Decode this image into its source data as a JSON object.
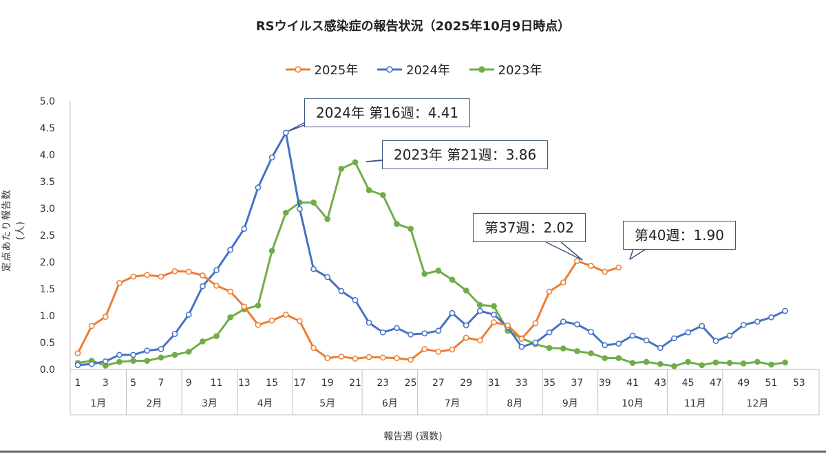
{
  "chart_data": {
    "type": "line",
    "title": "RSウイルス感染症の報告状況（2025年10月9日時点）",
    "xlabel": "報告週 (週数)",
    "ylabel": "定点あたり報告数 (人)",
    "ylim": [
      0,
      5
    ],
    "yticks": [
      "0.0",
      "0.5",
      "1.0",
      "1.5",
      "2.0",
      "2.5",
      "3.0",
      "3.5",
      "4.0",
      "4.5",
      "5.0"
    ],
    "xlim": [
      1,
      53
    ],
    "xticks": [
      "1",
      "3",
      "5",
      "7",
      "9",
      "11",
      "13",
      "15",
      "17",
      "19",
      "21",
      "23",
      "25",
      "27",
      "29",
      "31",
      "33",
      "35",
      "37",
      "39",
      "41",
      "43",
      "45",
      "47",
      "49",
      "51",
      "53"
    ],
    "months": [
      {
        "label": "1月",
        "start": 1,
        "end": 5
      },
      {
        "label": "2月",
        "start": 5,
        "end": 9
      },
      {
        "label": "3月",
        "start": 9,
        "end": 13
      },
      {
        "label": "4月",
        "start": 13,
        "end": 17
      },
      {
        "label": "5月",
        "start": 17,
        "end": 22
      },
      {
        "label": "6月",
        "start": 22,
        "end": 26
      },
      {
        "label": "7月",
        "start": 26,
        "end": 31
      },
      {
        "label": "8月",
        "start": 31,
        "end": 35
      },
      {
        "label": "9月",
        "start": 35,
        "end": 39
      },
      {
        "label": "10月",
        "start": 39,
        "end": 44
      },
      {
        "label": "11月",
        "start": 44,
        "end": 48
      },
      {
        "label": "12月",
        "start": 48,
        "end": 53
      }
    ],
    "grid": false,
    "legend_position": "top-center",
    "series": [
      {
        "name": "2025年",
        "color": "#ED7D31",
        "marker": "open-circle",
        "x": [
          1,
          2,
          3,
          4,
          5,
          6,
          7,
          8,
          9,
          10,
          11,
          12,
          13,
          14,
          15,
          16,
          17,
          18,
          19,
          20,
          21,
          22,
          23,
          24,
          25,
          26,
          27,
          28,
          29,
          30,
          31,
          32,
          33,
          34,
          35,
          36,
          37,
          38,
          39,
          40
        ],
        "values": [
          0.3,
          0.81,
          0.98,
          1.61,
          1.73,
          1.76,
          1.73,
          1.83,
          1.82,
          1.75,
          1.56,
          1.45,
          1.17,
          0.83,
          0.91,
          1.02,
          0.9,
          0.4,
          0.21,
          0.24,
          0.2,
          0.23,
          0.22,
          0.21,
          0.18,
          0.38,
          0.33,
          0.37,
          0.59,
          0.54,
          0.88,
          0.82,
          0.57,
          0.86,
          1.45,
          1.62,
          2.02,
          1.93,
          1.82,
          1.9
        ]
      },
      {
        "name": "2024年",
        "color": "#4472C4",
        "marker": "open-circle",
        "x": [
          1,
          2,
          3,
          4,
          5,
          6,
          7,
          8,
          9,
          10,
          11,
          12,
          13,
          14,
          15,
          16,
          17,
          18,
          19,
          20,
          21,
          22,
          23,
          24,
          25,
          26,
          27,
          28,
          29,
          30,
          31,
          32,
          33,
          34,
          35,
          36,
          37,
          38,
          39,
          40,
          41,
          42,
          43,
          44,
          45,
          46,
          47,
          48,
          49,
          50,
          51,
          52
        ],
        "values": [
          0.08,
          0.1,
          0.15,
          0.27,
          0.27,
          0.35,
          0.38,
          0.66,
          1.02,
          1.55,
          1.85,
          2.23,
          2.62,
          3.39,
          3.95,
          4.41,
          2.99,
          1.87,
          1.72,
          1.46,
          1.29,
          0.87,
          0.69,
          0.77,
          0.65,
          0.67,
          0.72,
          1.05,
          0.82,
          1.09,
          1.02,
          0.79,
          0.42,
          0.5,
          0.69,
          0.89,
          0.84,
          0.7,
          0.45,
          0.48,
          0.63,
          0.54,
          0.4,
          0.58,
          0.69,
          0.81,
          0.53,
          0.63,
          0.83,
          0.89,
          0.97,
          1.09
        ]
      },
      {
        "name": "2023年",
        "color": "#70AD47",
        "marker": "filled-circle",
        "x": [
          1,
          2,
          3,
          4,
          5,
          6,
          7,
          8,
          9,
          10,
          11,
          12,
          13,
          14,
          15,
          16,
          17,
          18,
          19,
          20,
          21,
          22,
          23,
          24,
          25,
          26,
          27,
          28,
          29,
          30,
          31,
          32,
          33,
          34,
          35,
          36,
          37,
          38,
          39,
          40,
          41,
          42,
          43,
          44,
          45,
          46,
          47,
          48,
          49,
          50,
          51,
          52
        ],
        "values": [
          0.12,
          0.16,
          0.07,
          0.14,
          0.16,
          0.16,
          0.22,
          0.27,
          0.33,
          0.52,
          0.62,
          0.97,
          1.12,
          1.19,
          2.21,
          2.92,
          3.11,
          3.11,
          2.8,
          3.74,
          3.86,
          3.34,
          3.25,
          2.71,
          2.62,
          1.78,
          1.84,
          1.67,
          1.47,
          1.2,
          1.18,
          0.72,
          0.58,
          0.47,
          0.4,
          0.39,
          0.34,
          0.3,
          0.21,
          0.21,
          0.12,
          0.14,
          0.1,
          0.06,
          0.14,
          0.08,
          0.13,
          0.12,
          0.11,
          0.14,
          0.09,
          0.13
        ]
      }
    ],
    "annotations": [
      {
        "text": "2024年 第16週：4.41"
      },
      {
        "text": "2023年 第21週：3.86"
      },
      {
        "text": "第37週：2.02"
      },
      {
        "text": "第40週：1.90"
      }
    ]
  }
}
